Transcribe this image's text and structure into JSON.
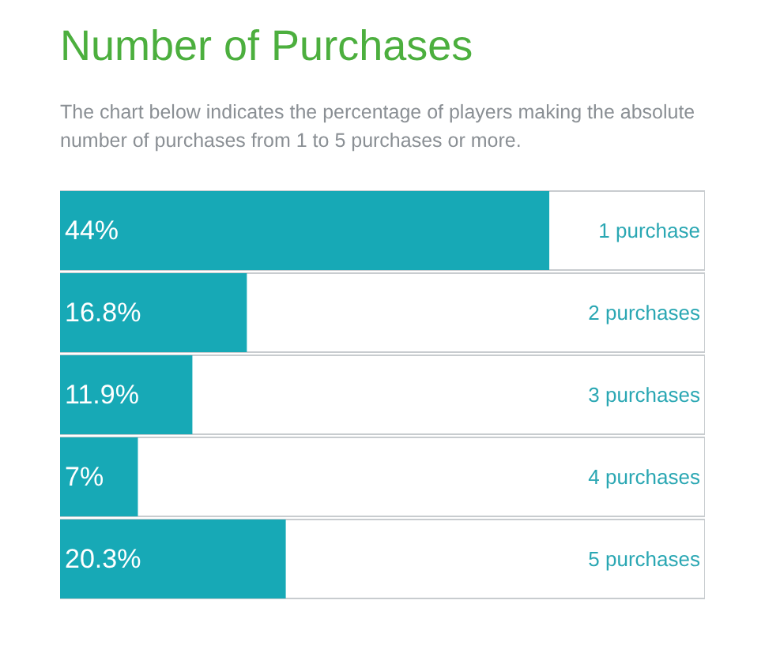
{
  "chart_data": {
    "type": "bar",
    "orientation": "horizontal",
    "title": "Number of Purchases",
    "subtitle": "The chart below indicates the percentage of players making the absolute number of purchases from 1 to 5 purchases or more.",
    "categories": [
      "1 purchase",
      "2 purchases",
      "3 purchases",
      "4 purchases",
      "5 purchases"
    ],
    "values": [
      44,
      16.8,
      11.9,
      7,
      20.3
    ],
    "value_labels": [
      "44%",
      "16.8%",
      "11.9%",
      "7%",
      "20.3%"
    ],
    "color": "#17a9b6",
    "xlim": [
      0,
      58
    ],
    "tick_labels": "y"
  }
}
